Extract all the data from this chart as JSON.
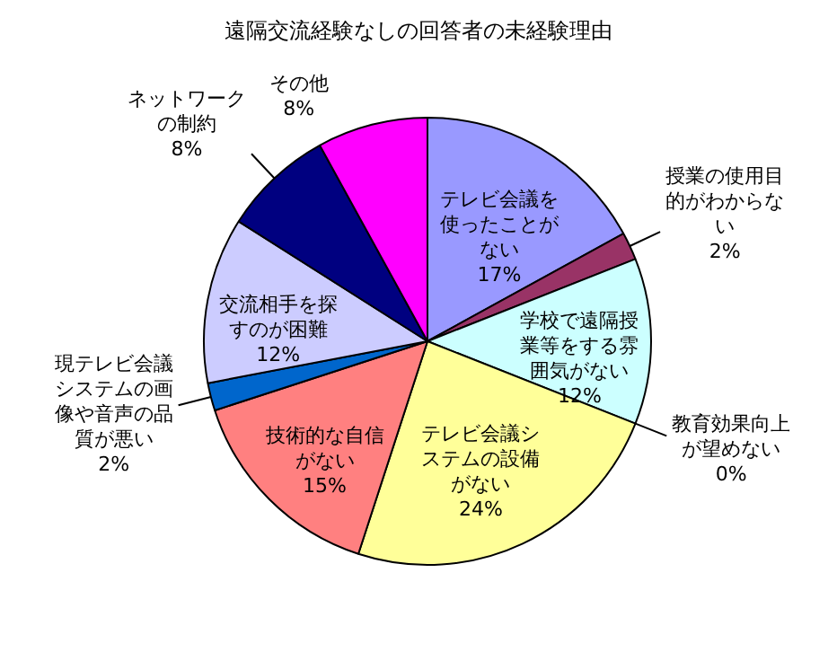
{
  "chart_data": {
    "type": "pie",
    "title": "遠隔交流経験なしの回答者の未経験理由",
    "categories": [
      "テレビ会議を使ったことがない",
      "授業の使用目的がわからない",
      "学校で遠隔授業等をする雰囲気がない",
      "教育効果向上が望めない",
      "テレビ会議システムの設備がない",
      "技術的な自信がない",
      "現テレビ会議システムの画像や音声の品質が悪い",
      "交流相手を探すのが困難",
      "ネットワークの制約",
      "その他"
    ],
    "values": [
      17,
      2,
      12,
      0,
      24,
      15,
      2,
      12,
      8,
      8
    ],
    "value_labels": [
      "17%",
      "2%",
      "12%",
      "0%",
      "24%",
      "15%",
      "2%",
      "12%",
      "8%",
      "8%"
    ],
    "colors": [
      "#9999ff",
      "#993366",
      "#ccffff",
      "#ffffcc",
      "#ffff99",
      "#ff8080",
      "#0066cc",
      "#ccccff",
      "#000080",
      "#ff00ff"
    ]
  }
}
